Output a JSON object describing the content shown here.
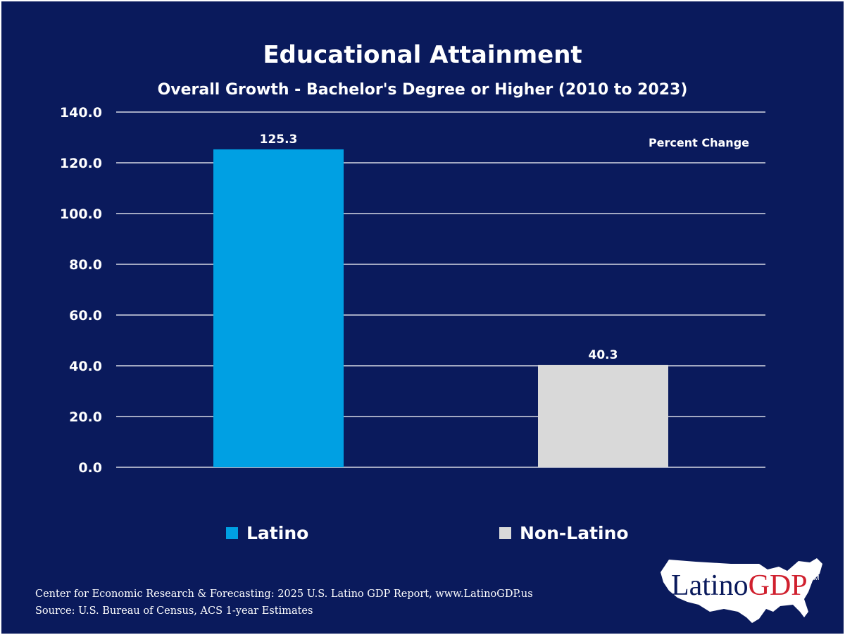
{
  "title": "Educational Attainment",
  "subtitle": "Overall Growth - Bachelor's Degree or Higher (2010 to 2023)",
  "chart_data": {
    "type": "bar",
    "title": "Educational Attainment",
    "subtitle": "Overall Growth - Bachelor's Degree or Higher (2010 to 2023)",
    "categories": [
      "Latino",
      "Non-Latino"
    ],
    "values": [
      125.3,
      40.3
    ],
    "value_labels": [
      "125.3",
      "40.3"
    ],
    "colors": [
      "#00a0e3",
      "#d9d9d9"
    ],
    "annotation": "Percent Change",
    "ylim": [
      0,
      140
    ],
    "yticks": [
      0,
      20,
      40,
      60,
      80,
      100,
      120,
      140
    ],
    "ytick_labels": [
      "0.0",
      "20.0",
      "40.0",
      "60.0",
      "80.0",
      "100.0",
      "120.0",
      "140.0"
    ],
    "grid": true,
    "legend_position": "bottom",
    "xlabel": "",
    "ylabel": ""
  },
  "legend": [
    {
      "label": "Latino",
      "color": "#00a0e3"
    },
    {
      "label": "Non-Latino",
      "color": "#d9d9d9"
    }
  ],
  "footer": {
    "line1": "Center for Economic Research & Forecasting: 2025 U.S. Latino GDP Report, www.LatinoGDP.us",
    "line2": "Source: U.S. Bureau of Census, ACS 1-year Estimates"
  },
  "logo": {
    "part1": "Latino",
    "part2": "GDP",
    "tm": "TM",
    "color1": "#0a1a5c",
    "color2": "#d0202e"
  },
  "colors": {
    "background": "#0a1a5c",
    "text": "#ffffff",
    "grid": "#ffffff"
  }
}
